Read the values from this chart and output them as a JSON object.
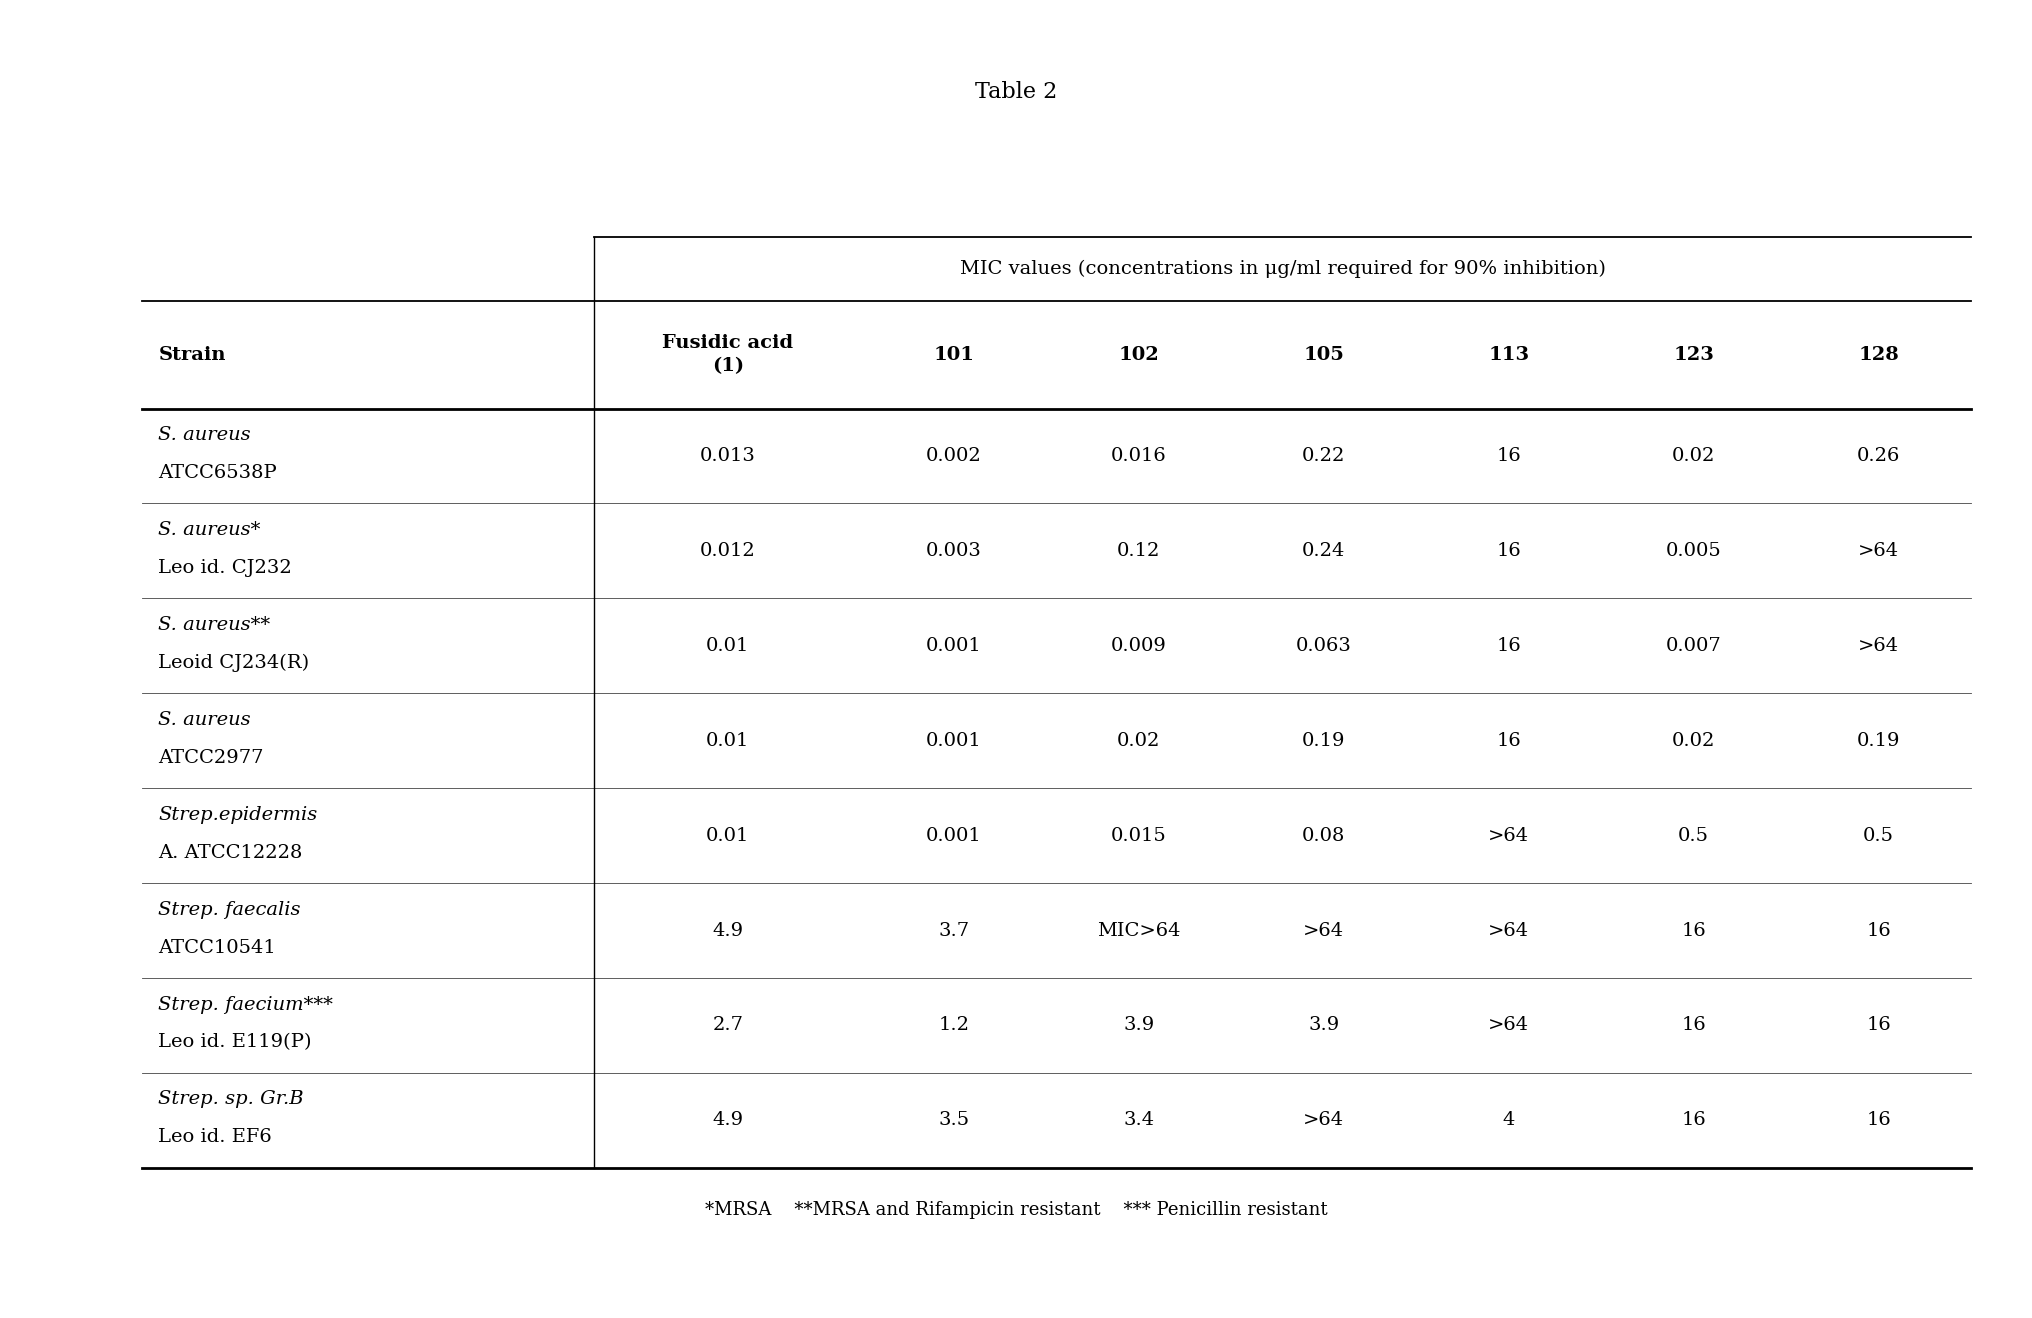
{
  "title": "Table 2",
  "super_header": "MIC values (concentrations in μg/ml required for 90% inhibition)",
  "col_headers_row0": [
    "",
    "Fusidic acid\n(1)",
    "101",
    "102",
    "105",
    "113",
    "123",
    "128"
  ],
  "rows": [
    [
      "0.013",
      "0.002",
      "0.016",
      "0.22",
      "16",
      "0.02",
      "0.26"
    ],
    [
      "0.012",
      "0.003",
      "0.12",
      "0.24",
      "16",
      "0.005",
      ">64"
    ],
    [
      "0.01",
      "0.001",
      "0.009",
      "0.063",
      "16",
      "0.007",
      ">64"
    ],
    [
      "0.01",
      "0.001",
      "0.02",
      "0.19",
      "16",
      "0.02",
      "0.19"
    ],
    [
      "0.01",
      "0.001",
      "0.015",
      "0.08",
      ">64",
      "0.5",
      "0.5"
    ],
    [
      "4.9",
      "3.7",
      "MIC>64",
      ">64",
      ">64",
      "16",
      "16"
    ],
    [
      "2.7",
      "1.2",
      "3.9",
      "3.9",
      ">64",
      "16",
      "16"
    ],
    [
      "4.9",
      "3.5",
      "3.4",
      ">64",
      "4",
      "16",
      "16"
    ]
  ],
  "strain_line1": [
    "S. aureus",
    "S. aureus*",
    "S. aureus**",
    "S. aureus",
    "Strep.epidermis",
    "Strep. faecalis",
    "Strep. faecium***",
    "Strep. sp. Gr.B"
  ],
  "strain_line2": [
    "ATCC6538P",
    "Leo id. CJ232",
    "Leoid CJ234(R)",
    "ATCC2977",
    "A. ATCC12228",
    "ATCC10541",
    "Leo id. E119(P)",
    "Leo id. EF6"
  ],
  "footnote": "*MRSA    **MRSA and Rifampicin resistant    *** Penicillin resistant",
  "col_rel_widths": [
    2.2,
    1.3,
    0.9,
    0.9,
    0.9,
    0.9,
    0.9,
    0.9
  ],
  "background_color": "#ffffff",
  "font_size": 14,
  "title_font_size": 16
}
